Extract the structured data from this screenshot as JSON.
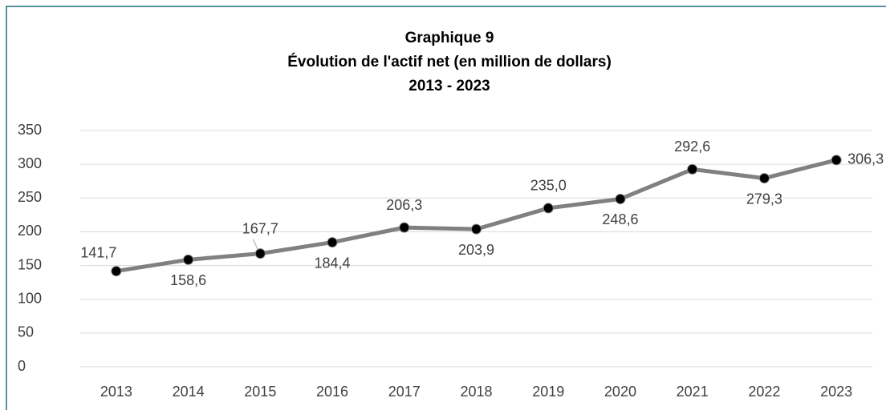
{
  "chart_data": {
    "type": "line",
    "title": [
      "Graphique 9",
      "Évolution de l'actif net (en million de dollars)",
      "2013 - 2023"
    ],
    "categories": [
      "2013",
      "2014",
      "2015",
      "2016",
      "2017",
      "2018",
      "2019",
      "2020",
      "2021",
      "2022",
      "2023"
    ],
    "series": [
      {
        "name": "Actif net",
        "color": "#808080",
        "values": [
          141.7,
          158.6,
          167.7,
          184.4,
          206.3,
          203.9,
          235.0,
          248.6,
          292.6,
          279.3,
          306.3
        ],
        "value_labels": [
          "141,7",
          "158,6",
          "167,7",
          "184,4",
          "206,3",
          "203,9",
          "235,0",
          "248,6",
          "292,6",
          "279,3",
          "306,3"
        ]
      }
    ],
    "ylim": [
      0,
      350
    ],
    "yticks": [
      0,
      50,
      100,
      150,
      200,
      250,
      300,
      350
    ],
    "grid": true
  }
}
